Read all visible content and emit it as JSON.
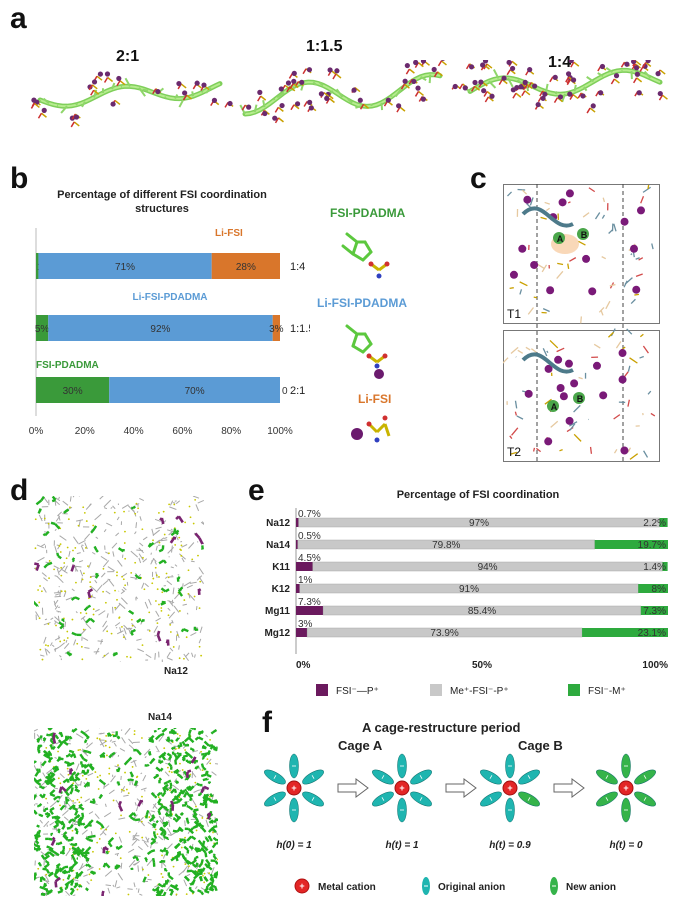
{
  "panels": {
    "a": "a",
    "b": "b",
    "c": "c",
    "d": "d",
    "e": "e",
    "f": "f"
  },
  "panel_a": {
    "ratios": [
      "2:1",
      "1:1.5",
      "1:4"
    ]
  },
  "panel_b": {
    "chart_data": {
      "type": "bar",
      "orientation": "horizontal",
      "stacked": true,
      "title_line1": "Percentage of different FSI coordination",
      "title_line2": "structures",
      "categories": [
        "1:4",
        "1:1.5",
        "2:1"
      ],
      "series": [
        {
          "name": "FSI-PDADMA",
          "color": "#3a9a3a",
          "values": [
            1,
            5,
            30
          ],
          "labels": [
            "1%",
            "5%",
            "30%"
          ]
        },
        {
          "name": "Li-FSI-PDADMA",
          "color": "#5b9bd5",
          "values": [
            71,
            92,
            70
          ],
          "labels": [
            "71%",
            "92%",
            "70%"
          ]
        },
        {
          "name": "Li-FSI",
          "color": "#d9762b",
          "values": [
            28,
            3,
            0
          ],
          "labels": [
            "28%",
            "3%",
            "0"
          ]
        }
      ],
      "xticks": [
        "0%",
        "20%",
        "40%",
        "60%",
        "80%",
        "100%"
      ],
      "xlim": [
        0,
        100
      ]
    },
    "legend": {
      "fsi_pdadma": "FSI-PDADMA",
      "li_fsi_pdadma": "Li-FSI-PDADMA",
      "li_fsi": "Li-FSI"
    },
    "colors": {
      "green": "#3a9a3a",
      "blue": "#5b9bd5",
      "orange": "#d9762b"
    }
  },
  "panel_c": {
    "labels": {
      "t1": "T1",
      "t2": "T2",
      "a": "A",
      "b": "B"
    }
  },
  "panel_d": {
    "labels": {
      "na12": "Na12",
      "na14": "Na14"
    }
  },
  "panel_e": {
    "chart_data": {
      "type": "bar",
      "orientation": "horizontal",
      "stacked": true,
      "title": "Percentage of FSI coordination",
      "categories": [
        "Na12",
        "Na14",
        "K11",
        "K12",
        "Mg11",
        "Mg12"
      ],
      "series": [
        {
          "name": "FSI⁻—P⁺",
          "color": "#6b1a5e",
          "values": [
            0.7,
            0.5,
            4.5,
            1,
            7.3,
            3
          ],
          "labels": [
            "0.7%",
            "0.5%",
            "4.5%",
            "1%",
            "7.3%",
            "3%"
          ]
        },
        {
          "name": "Me⁺-FSI⁻-P⁺",
          "color": "#c8c8c8",
          "values": [
            97,
            79.8,
            94,
            91,
            85.4,
            73.9
          ],
          "labels": [
            "97%",
            "79.8%",
            "94%",
            "91%",
            "85.4%",
            "73.9%"
          ]
        },
        {
          "name": "FSI⁻-M⁺",
          "color": "#2eaa3e",
          "values": [
            2.2,
            19.7,
            1.4,
            8,
            7.3,
            23.1
          ],
          "labels": [
            "2.2%",
            "19.7%",
            "1.4%",
            "8%",
            "7.3%",
            "23.1%"
          ]
        }
      ],
      "xticks": [
        "0%",
        "50%",
        "100%"
      ],
      "xlim": [
        0,
        100
      ]
    }
  },
  "panel_f": {
    "title": "A cage-restructure period",
    "cage_a": "Cage A",
    "cage_b": "Cage B",
    "h_labels": [
      "h(0) = 1",
      "h(t) = 1",
      "h(t) = 0.9",
      "h(t) = 0"
    ],
    "legend": {
      "cation": "Metal cation",
      "original": "Original anion",
      "new": "New anion"
    },
    "colors": {
      "original": "#1fb5b0",
      "new": "#35b34a",
      "cation": "#e32626"
    },
    "new_anion_counts": [
      0,
      0,
      1,
      6
    ]
  }
}
